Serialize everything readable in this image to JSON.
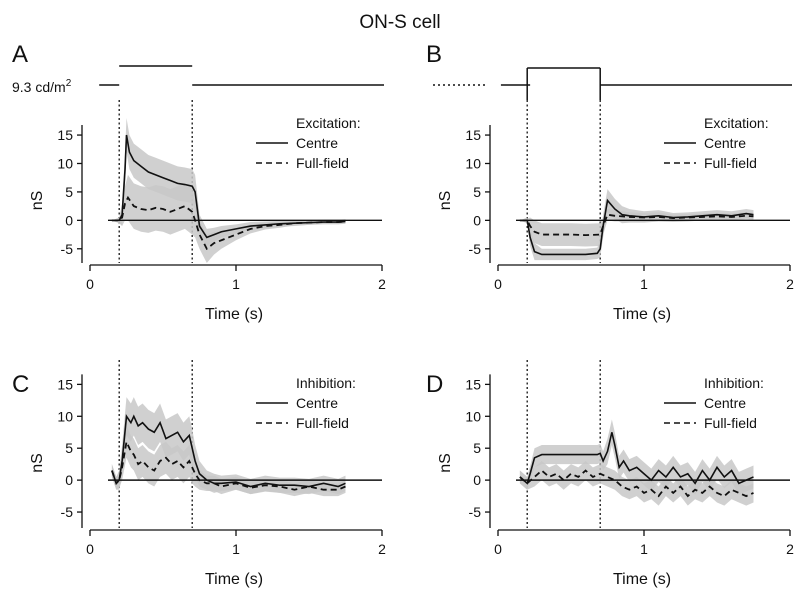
{
  "figure_title": "ON-S cell",
  "stimulus_label": "9.3 cd/m",
  "stimulus_label_sup": "2",
  "colors": {
    "line": "#111111",
    "band": "#c8c8c8",
    "axis": "#111111"
  },
  "chart_data": [
    {
      "panel": "A",
      "type": "line",
      "legend_title": "Excitation:",
      "xlabel": "Time (s)",
      "ylabel": "nS",
      "xlim": [
        0,
        2
      ],
      "ylim": [
        -7.5,
        18
      ],
      "xticks": [
        0,
        1,
        2
      ],
      "yticks": [
        15,
        10,
        5,
        0,
        -5
      ],
      "stimulus_markers_s": [
        0.2,
        0.7
      ],
      "stimulus": "increment",
      "series": [
        {
          "name": "Centre",
          "style": "solid",
          "x": [
            0.15,
            0.2,
            0.22,
            0.24,
            0.25,
            0.27,
            0.3,
            0.35,
            0.4,
            0.45,
            0.5,
            0.55,
            0.6,
            0.65,
            0.7,
            0.72,
            0.75,
            0.8,
            0.85,
            0.9,
            1.0,
            1.1,
            1.2,
            1.3,
            1.4,
            1.5,
            1.6,
            1.7,
            1.75
          ],
          "y": [
            0,
            0,
            1,
            9,
            15,
            12,
            10.5,
            9.5,
            8.5,
            8,
            7.5,
            7,
            6.5,
            6.3,
            6,
            5,
            -1,
            -3,
            -2.5,
            -2,
            -1.5,
            -1,
            -0.8,
            -0.6,
            -0.5,
            -0.4,
            -0.3,
            -0.3,
            -0.2
          ],
          "band": [
            0,
            0.5,
            2,
            3,
            3,
            3,
            3,
            3,
            3,
            3,
            3,
            3,
            3,
            3,
            3,
            3,
            2,
            1.5,
            1.2,
            1,
            0.8,
            0.7,
            0.6,
            0.5,
            0.5,
            0.4,
            0.4,
            0.4,
            0.4
          ]
        },
        {
          "name": "Full-field",
          "style": "dashed",
          "x": [
            0.15,
            0.2,
            0.22,
            0.24,
            0.26,
            0.3,
            0.35,
            0.4,
            0.45,
            0.5,
            0.55,
            0.6,
            0.65,
            0.7,
            0.72,
            0.75,
            0.8,
            0.85,
            0.9,
            1.0,
            1.1,
            1.2,
            1.3,
            1.4,
            1.5,
            1.6,
            1.7,
            1.75
          ],
          "y": [
            0,
            0,
            0.5,
            3,
            4,
            2.5,
            2,
            1.8,
            2.2,
            2,
            1.5,
            2,
            2.5,
            1.5,
            0,
            -2.5,
            -5,
            -4,
            -3.5,
            -2.5,
            -1.5,
            -1,
            -0.8,
            -0.5,
            -0.4,
            -0.3,
            -0.3,
            -0.2
          ],
          "band": [
            0,
            0.3,
            1.5,
            3,
            4,
            4,
            4,
            4,
            4,
            4,
            4,
            4,
            4,
            4,
            3,
            2.5,
            2.5,
            2,
            1.5,
            1,
            0.8,
            0.6,
            0.5,
            0.4,
            0.4,
            0.3,
            0.3,
            0.3
          ]
        }
      ]
    },
    {
      "panel": "B",
      "type": "line",
      "legend_title": "Excitation:",
      "xlabel": "Time (s)",
      "ylabel": "nS",
      "xlim": [
        0,
        2
      ],
      "ylim": [
        -7.5,
        18
      ],
      "xticks": [
        0,
        1,
        2
      ],
      "yticks": [
        15,
        10,
        5,
        0,
        -5
      ],
      "stimulus_markers_s": [
        0.2,
        0.7
      ],
      "stimulus": "decrement",
      "series": [
        {
          "name": "Centre",
          "style": "solid",
          "x": [
            0.15,
            0.2,
            0.22,
            0.25,
            0.3,
            0.4,
            0.5,
            0.6,
            0.68,
            0.7,
            0.72,
            0.75,
            0.8,
            0.85,
            0.9,
            1.0,
            1.1,
            1.2,
            1.3,
            1.4,
            1.5,
            1.6,
            1.7,
            1.75
          ],
          "y": [
            0,
            0,
            -3,
            -5.5,
            -6,
            -6,
            -6,
            -6,
            -5.8,
            -5,
            -1,
            3.5,
            2,
            1,
            0.8,
            0.6,
            0.8,
            0.5,
            0.6,
            0.8,
            1,
            0.8,
            1.2,
            1
          ],
          "band": [
            0,
            0.5,
            1.5,
            1.5,
            1,
            1,
            1,
            1,
            1,
            1.5,
            2,
            2,
            1.8,
            1.5,
            1.2,
            1,
            1,
            0.8,
            0.8,
            0.8,
            0.8,
            0.8,
            0.8,
            0.8
          ]
        },
        {
          "name": "Full-field",
          "style": "dashed",
          "x": [
            0.15,
            0.2,
            0.22,
            0.25,
            0.3,
            0.4,
            0.5,
            0.6,
            0.7,
            0.72,
            0.75,
            0.8,
            0.9,
            1.0,
            1.1,
            1.2,
            1.3,
            1.4,
            1.5,
            1.6,
            1.7,
            1.75
          ],
          "y": [
            0,
            0,
            -1,
            -2,
            -2.5,
            -2.5,
            -2.5,
            -2.6,
            -2.5,
            -1,
            1,
            0.8,
            0.6,
            0.5,
            0.6,
            0.4,
            0.5,
            0.6,
            0.7,
            0.6,
            0.8,
            0.7
          ],
          "band": [
            0,
            0.3,
            1.5,
            2,
            2,
            2,
            2,
            2,
            2,
            1.5,
            1,
            1,
            0.8,
            0.8,
            0.8,
            0.6,
            0.6,
            0.6,
            0.6,
            0.6,
            0.6,
            0.6
          ]
        }
      ]
    },
    {
      "panel": "C",
      "type": "line",
      "legend_title": "Inhibition:",
      "xlabel": "Time (s)",
      "ylabel": "nS",
      "xlim": [
        0,
        2
      ],
      "ylim": [
        -7.5,
        16
      ],
      "xticks": [
        0,
        1,
        2
      ],
      "yticks": [
        15,
        10,
        5,
        0,
        -5
      ],
      "stimulus_markers_s": [
        0.2,
        0.7
      ],
      "series": [
        {
          "name": "Centre",
          "style": "solid",
          "x": [
            0.15,
            0.18,
            0.2,
            0.22,
            0.25,
            0.28,
            0.3,
            0.33,
            0.36,
            0.4,
            0.44,
            0.48,
            0.52,
            0.56,
            0.6,
            0.64,
            0.68,
            0.7,
            0.72,
            0.75,
            0.8,
            0.85,
            0.9,
            1.0,
            1.1,
            1.2,
            1.3,
            1.4,
            1.5,
            1.6,
            1.7,
            1.75
          ],
          "y": [
            1.5,
            -0.5,
            0,
            3,
            10,
            9,
            10,
            8.5,
            9,
            8,
            7.5,
            9,
            6.5,
            7,
            7.5,
            6,
            7,
            5,
            3,
            1,
            0,
            -0.5,
            -0.5,
            -0.3,
            -1,
            -0.5,
            -0.8,
            -0.8,
            -1,
            -0.5,
            -1,
            -0.5
          ],
          "band": [
            1,
            1,
            1.5,
            2.5,
            3,
            3,
            3,
            3,
            3,
            3,
            3,
            3,
            3,
            3,
            3,
            3,
            3,
            3,
            2.5,
            2,
            1.5,
            1.5,
            1.2,
            1.2,
            1.2,
            1.2,
            1.2,
            1.2,
            1.2,
            1.2,
            1.2,
            1.2
          ]
        },
        {
          "name": "Full-field",
          "style": "dashed",
          "x": [
            0.15,
            0.18,
            0.2,
            0.22,
            0.25,
            0.28,
            0.3,
            0.33,
            0.36,
            0.4,
            0.44,
            0.48,
            0.52,
            0.56,
            0.6,
            0.64,
            0.68,
            0.7,
            0.72,
            0.75,
            0.8,
            0.85,
            0.9,
            1.0,
            1.1,
            1.2,
            1.3,
            1.4,
            1.5,
            1.6,
            1.7,
            1.75
          ],
          "y": [
            1.5,
            -0.5,
            0,
            2,
            6,
            4.5,
            4,
            2.5,
            3,
            2,
            1.5,
            3,
            3.5,
            2.5,
            3,
            2,
            3,
            2,
            1,
            0,
            -0.5,
            -0.5,
            -1,
            -0.5,
            -1.2,
            -0.8,
            -1,
            -1.5,
            -1,
            -1.5,
            -1.5,
            -1
          ],
          "band": [
            1,
            1,
            1.2,
            2,
            2.5,
            2.5,
            2.5,
            2.5,
            2.5,
            2.5,
            2.5,
            2.5,
            2.5,
            2.5,
            2.5,
            2.5,
            2.5,
            2.5,
            2,
            1.5,
            1.2,
            1.2,
            1.2,
            1,
            1,
            1,
            1,
            1,
            1,
            1,
            1,
            1
          ]
        }
      ]
    },
    {
      "panel": "D",
      "type": "line",
      "legend_title": "Inhibition:",
      "xlabel": "Time (s)",
      "ylabel": "nS",
      "xlim": [
        0,
        2
      ],
      "ylim": [
        -7.5,
        16
      ],
      "xticks": [
        0,
        1,
        2
      ],
      "yticks": [
        15,
        10,
        5,
        0,
        -5
      ],
      "stimulus_markers_s": [
        0.2,
        0.7
      ],
      "series": [
        {
          "name": "Centre",
          "style": "solid",
          "x": [
            0.15,
            0.2,
            0.22,
            0.25,
            0.3,
            0.4,
            0.5,
            0.6,
            0.68,
            0.7,
            0.72,
            0.75,
            0.78,
            0.8,
            0.83,
            0.86,
            0.9,
            0.95,
            1.0,
            1.05,
            1.1,
            1.15,
            1.2,
            1.25,
            1.3,
            1.35,
            1.4,
            1.45,
            1.5,
            1.55,
            1.6,
            1.65,
            1.7,
            1.75
          ],
          "y": [
            0.5,
            -0.5,
            1,
            3.5,
            4,
            4,
            4,
            4,
            4,
            4.2,
            3,
            4.5,
            7.5,
            5.5,
            2,
            3,
            1.5,
            2,
            1,
            0,
            1.5,
            0.5,
            2,
            0.5,
            1,
            -0.5,
            1.5,
            0,
            2,
            0.5,
            1.5,
            -0.5,
            0,
            0.5
          ],
          "band": [
            1,
            1,
            1.2,
            1.5,
            1.5,
            1.5,
            1.5,
            1.5,
            1.5,
            1.5,
            1.5,
            2,
            2,
            2,
            1.8,
            1.8,
            1.8,
            1.8,
            1.8,
            1.8,
            1.8,
            1.8,
            1.8,
            1.8,
            1.8,
            1.8,
            1.8,
            1.8,
            1.8,
            1.8,
            1.8,
            1.8,
            1.8,
            1.8
          ]
        },
        {
          "name": "Full-field",
          "style": "dashed",
          "x": [
            0.15,
            0.2,
            0.25,
            0.3,
            0.35,
            0.4,
            0.45,
            0.5,
            0.55,
            0.6,
            0.65,
            0.7,
            0.75,
            0.8,
            0.85,
            0.9,
            0.95,
            1.0,
            1.05,
            1.1,
            1.15,
            1.2,
            1.25,
            1.3,
            1.35,
            1.4,
            1.45,
            1.5,
            1.55,
            1.6,
            1.65,
            1.7,
            1.75
          ],
          "y": [
            0.5,
            -0.5,
            0.5,
            1.5,
            0.5,
            1,
            0,
            1,
            0.5,
            1.5,
            0.5,
            1,
            0.5,
            0,
            -1,
            -1.5,
            -1,
            -2,
            -1.5,
            -2.5,
            -1,
            -2,
            -1,
            -2.5,
            -1.5,
            -2,
            -1,
            -2,
            -2.5,
            -1.5,
            -2,
            -2.5,
            -2
          ],
          "band": [
            1,
            1,
            1.5,
            1.5,
            1.5,
            1.5,
            1.5,
            1.5,
            1.5,
            1.5,
            1.5,
            1.5,
            1.5,
            1.5,
            1.5,
            1.5,
            1.5,
            1.5,
            1.5,
            1.5,
            1.5,
            1.5,
            1.5,
            1.5,
            1.5,
            1.5,
            1.5,
            1.5,
            1.5,
            1.5,
            1.5,
            1.5,
            1.5
          ]
        }
      ]
    }
  ]
}
